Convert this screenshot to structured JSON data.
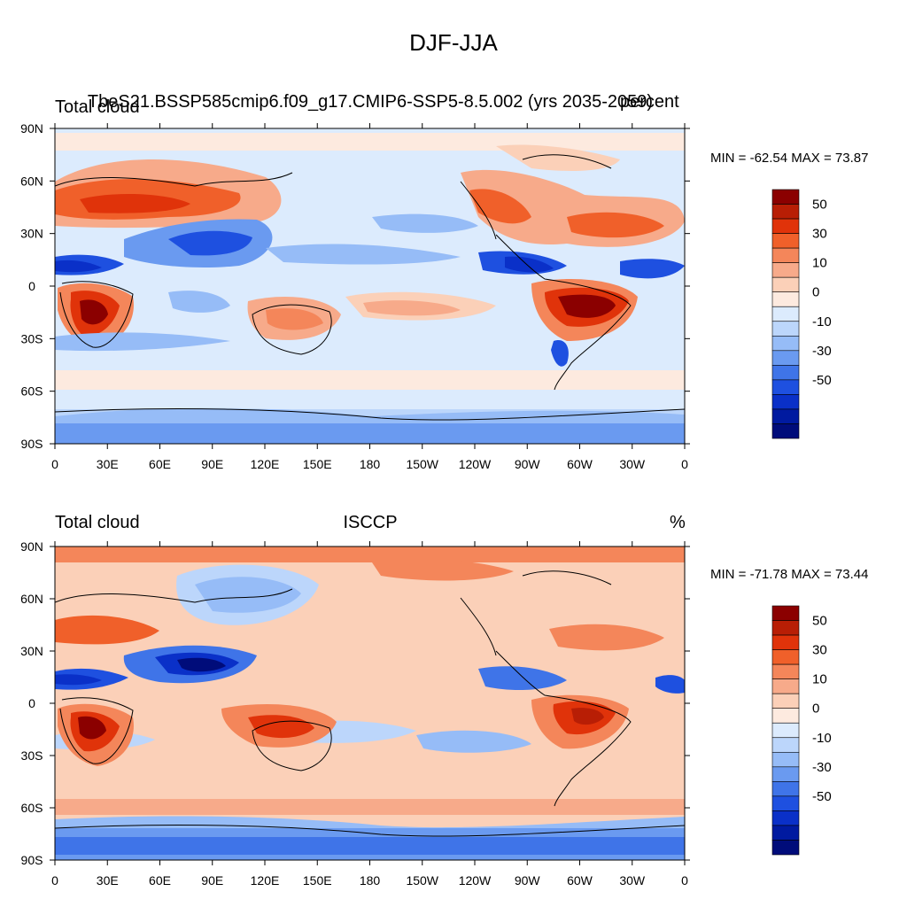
{
  "figure": {
    "title": "DJF-JJA"
  },
  "panels": [
    {
      "left_title": "Total cloud",
      "center_title": "TbeS21.BSSP585cmip6.f09_g17.CMIP6-SSP5-8.5.002 (yrs 2035-2059)",
      "right_title": "percent",
      "minmax": "MIN = -62.54 MAX =  73.87"
    },
    {
      "left_title": "Total cloud",
      "center_title": "ISCCP",
      "right_title": "%",
      "minmax": "MIN = -71.78 MAX =  73.44"
    }
  ],
  "axes": {
    "lat_labels": [
      "90N",
      "60N",
      "30N",
      "0",
      "30S",
      "60S",
      "90S"
    ],
    "lon_labels": [
      "0",
      "30E",
      "60E",
      "90E",
      "120E",
      "150E",
      "180",
      "150W",
      "120W",
      "90W",
      "60W",
      "30W",
      "0"
    ]
  },
  "colorbar": {
    "colors": [
      "#8b0000",
      "#b81e05",
      "#e0330a",
      "#f0602a",
      "#f4865a",
      "#f7aa8a",
      "#fbd0b8",
      "#fdeadf",
      "#dcebfd",
      "#bcd6fb",
      "#96bcf7",
      "#6a9af0",
      "#3f74e8",
      "#1e50e0",
      "#0a30c8",
      "#001aa0",
      "#000c7a"
    ],
    "labels": [
      "50",
      "30",
      "10",
      "0",
      "-10",
      "-30",
      "-50"
    ]
  },
  "colors": {
    "land_outline": "#000000",
    "ocean_background": "#dcebfd"
  }
}
